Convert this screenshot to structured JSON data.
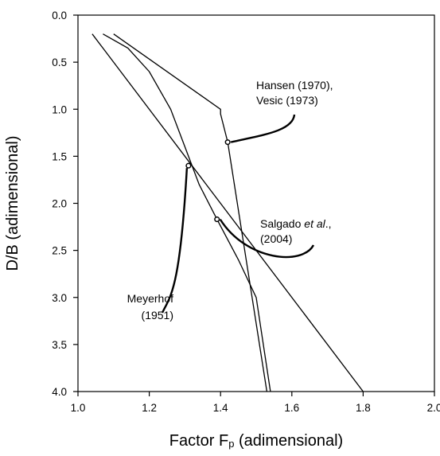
{
  "chart_data": {
    "type": "line",
    "title": "",
    "xlabel_prefix": "Factor  F",
    "xlabel_sub": "p",
    "xlabel_suffix": " (adimensional)",
    "ylabel": "D/B (adimensional)",
    "xlim": [
      1.0,
      2.0
    ],
    "ylim": [
      0.0,
      4.0
    ],
    "y_inverted": true,
    "x_ticks": [
      "1.0",
      "1.2",
      "1.4",
      "1.6",
      "1.8",
      "2.0"
    ],
    "y_ticks": [
      "0.0",
      "0.5",
      "1.0",
      "1.5",
      "2.0",
      "2.5",
      "3.0",
      "3.5",
      "4.0"
    ],
    "grid": false,
    "series": [
      {
        "name": "Hansen (1970), Vesic (1973)",
        "points": [
          [
            1.1,
            0.2
          ],
          [
            1.4,
            1.0
          ],
          [
            1.4,
            1.05
          ],
          [
            1.42,
            1.35
          ],
          [
            1.53,
            4.0
          ]
        ]
      },
      {
        "name": "Meyerhof (1951)",
        "points": [
          [
            1.04,
            0.2
          ],
          [
            1.8,
            4.0
          ]
        ]
      },
      {
        "name": "Salgado et al., (2004)",
        "points": [
          [
            1.07,
            0.2
          ],
          [
            1.14,
            0.35
          ],
          [
            1.2,
            0.6
          ],
          [
            1.26,
            1.0
          ],
          [
            1.3,
            1.4
          ],
          [
            1.34,
            1.8
          ],
          [
            1.39,
            2.17
          ],
          [
            1.45,
            2.6
          ],
          [
            1.5,
            3.0
          ],
          [
            1.54,
            4.0
          ]
        ]
      }
    ],
    "annotations": [
      {
        "lines": [
          "Hansen (1970),",
          "Vesic (1973)"
        ],
        "point": [
          1.42,
          1.35
        ]
      },
      {
        "lines_rich": [
          [
            {
              "t": "Salgado "
            },
            {
              "t": "et al",
              "i": true
            },
            {
              "t": "., "
            }
          ],
          [
            {
              "t": "(2004)"
            }
          ]
        ],
        "point": [
          1.39,
          2.17
        ]
      },
      {
        "lines": [
          "Meyerhof",
          "(1951)"
        ],
        "point": [
          1.31,
          1.6
        ]
      }
    ]
  }
}
